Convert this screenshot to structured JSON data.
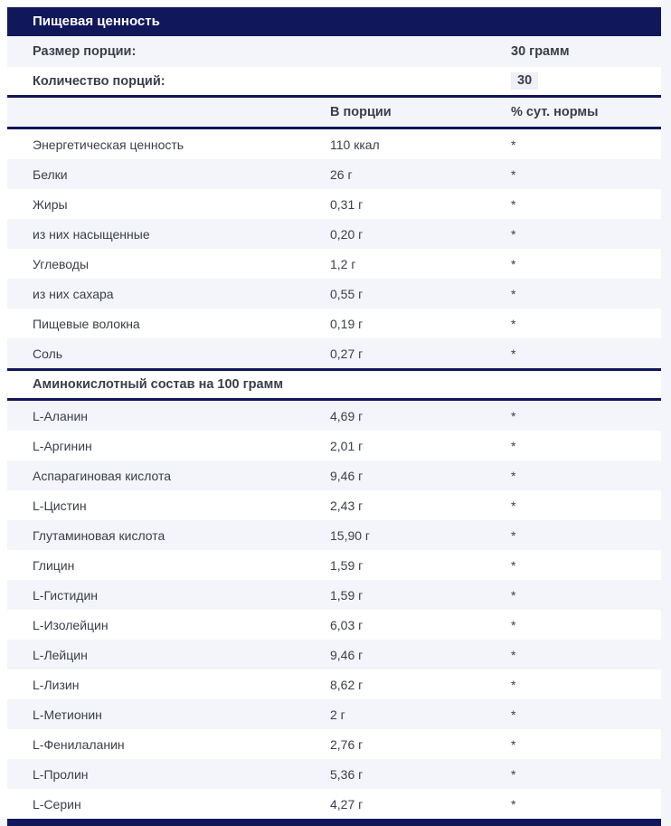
{
  "colors": {
    "navy": "#10175a",
    "row_alt_bg": "#f4f5fa",
    "text": "#3b3e4a",
    "title_text": "#ffffff"
  },
  "table": {
    "title": "Пищевая ценность",
    "info_rows": [
      {
        "label": "Размер порции:",
        "value": "30 грамм"
      },
      {
        "label": "Количество порций:",
        "value": "30"
      }
    ],
    "columns": {
      "in_portion": "В порции",
      "daily_norm": "% сут. нормы"
    },
    "nutrition_rows": [
      {
        "label": "Энергетическая ценность",
        "value": "110 ккал",
        "daily": "*"
      },
      {
        "label": "Белки",
        "value": "26 г",
        "daily": "*"
      },
      {
        "label": "Жиры",
        "value": "0,31 г",
        "daily": "*"
      },
      {
        "label": "из них насыщенные",
        "value": "0,20 г",
        "daily": "*"
      },
      {
        "label": "Углеводы",
        "value": "1,2 г",
        "daily": "*"
      },
      {
        "label": "из них сахара",
        "value": "0,55 г",
        "daily": "*"
      },
      {
        "label": "Пищевые волокна",
        "value": "0,19 г",
        "daily": "*"
      },
      {
        "label": "Соль",
        "value": "0,27 г",
        "daily": "*"
      }
    ],
    "amino_section_title": "Аминокислотный состав на 100 грамм",
    "amino_rows": [
      {
        "label": "L-Аланин",
        "value": "4,69 г",
        "daily": "*"
      },
      {
        "label": "L-Аргинин",
        "value": "2,01 г",
        "daily": "*"
      },
      {
        "label": "Аспарагиновая кислота",
        "value": "9,46 г",
        "daily": "*"
      },
      {
        "label": "L-Цистин",
        "value": "2,43 г",
        "daily": "*"
      },
      {
        "label": "Глутаминовая кислота",
        "value": "15,90 г",
        "daily": "*"
      },
      {
        "label": "Глицин",
        "value": "1,59 г",
        "daily": "*"
      },
      {
        "label": "L-Гистидин",
        "value": "1,59 г",
        "daily": "*"
      },
      {
        "label": "L-Изолейцин",
        "value": "6,03 г",
        "daily": "*"
      },
      {
        "label": "L-Лейцин",
        "value": "9,46 г",
        "daily": "*"
      },
      {
        "label": "L-Лизин",
        "value": "8,62 г",
        "daily": "*"
      },
      {
        "label": "L-Метионин",
        "value": "2 г",
        "daily": "*"
      },
      {
        "label": "L-Фенилаланин",
        "value": "2,76 г",
        "daily": "*"
      },
      {
        "label": "L-Пролин",
        "value": "5,36 г",
        "daily": "*"
      },
      {
        "label": "L-Серин",
        "value": "4,27 г",
        "daily": "*"
      }
    ]
  }
}
